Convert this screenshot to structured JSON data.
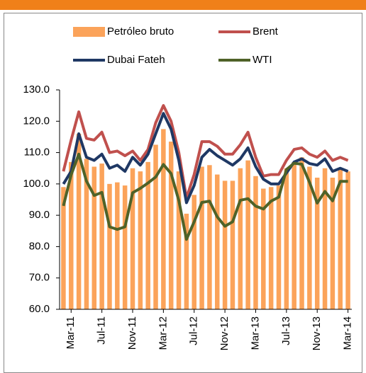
{
  "chart_data": {
    "type": "combo",
    "categories": [
      null,
      "Mar-11",
      null,
      null,
      null,
      "Jul-11",
      null,
      null,
      null,
      "Nov-11",
      null,
      null,
      null,
      "Mar-12",
      null,
      null,
      null,
      "Jul-12",
      null,
      null,
      null,
      "Nov-12",
      null,
      null,
      null,
      "Mar-13",
      null,
      null,
      null,
      "Jul-13",
      null,
      null,
      null,
      "Nov-13",
      null,
      null,
      null,
      "Mar-14"
    ],
    "series": [
      {
        "name": "Petróleo bruto",
        "type": "bar",
        "color": "#fba35a",
        "values": [
          99,
          107,
          116,
          108,
          105.5,
          106.5,
          100,
          100.5,
          99.5,
          105,
          104,
          107,
          112.5,
          117.5,
          113.5,
          104,
          90.5,
          96.5,
          105.5,
          106,
          103,
          101,
          101,
          105,
          107.5,
          102.5,
          98.5,
          99,
          99.5,
          105,
          107,
          108.5,
          105.5,
          102,
          105,
          102,
          104.5,
          104
        ]
      },
      {
        "name": "Brent",
        "type": "line",
        "color": "#c0504d",
        "values": [
          104,
          114,
          123,
          114.5,
          114,
          116.5,
          110,
          110.5,
          109,
          110.5,
          107.5,
          111,
          119.5,
          125,
          120,
          110,
          95.5,
          103,
          113.5,
          113.5,
          112,
          109.5,
          109.5,
          112.5,
          116.5,
          108.5,
          102.5,
          103,
          103,
          107.5,
          111,
          111.5,
          109.5,
          108.5,
          110.5,
          107.5,
          108.5,
          107.5
        ]
      },
      {
        "name": "Dubai Fateh",
        "type": "line",
        "color": "#1f3864",
        "values": [
          100,
          104,
          116,
          108.5,
          107.5,
          109.5,
          105,
          106,
          104,
          108.5,
          106,
          109.5,
          116,
          122.5,
          117.5,
          107.5,
          94,
          99.5,
          108.5,
          111,
          109,
          107.5,
          106,
          108,
          111.5,
          105.5,
          101.5,
          100,
          100,
          103.5,
          107,
          108,
          106.5,
          106,
          108,
          104,
          105,
          104
        ]
      },
      {
        "name": "WTI",
        "type": "line",
        "color": "#4f6228",
        "values": [
          93,
          102.9,
          109.5,
          100.9,
          96.3,
          97.3,
          86.3,
          85.5,
          86.3,
          97.2,
          98.6,
          100.3,
          102.2,
          106.2,
          103.3,
          94.7,
          82.3,
          87.9,
          94.1,
          94.5,
          89.5,
          86.5,
          87.9,
          94.8,
          95.3,
          92.9,
          92,
          94.5,
          95.8,
          104.6,
          106.6,
          106.3,
          100.5,
          93.9,
          97.6,
          94.6,
          100.8,
          100.8
        ]
      }
    ],
    "ylim": [
      60,
      130
    ],
    "yticks": [
      {
        "value": 60,
        "label": "60.0"
      },
      {
        "value": 70,
        "label": "70.0"
      },
      {
        "value": 80,
        "label": "80.0"
      },
      {
        "value": 90,
        "label": "90.0"
      },
      {
        "value": 100,
        "label": "100.0"
      },
      {
        "value": 110,
        "label": "110.0"
      },
      {
        "value": 120,
        "label": "120.0"
      },
      {
        "value": 130,
        "label": "130.0"
      }
    ],
    "grid": false
  }
}
